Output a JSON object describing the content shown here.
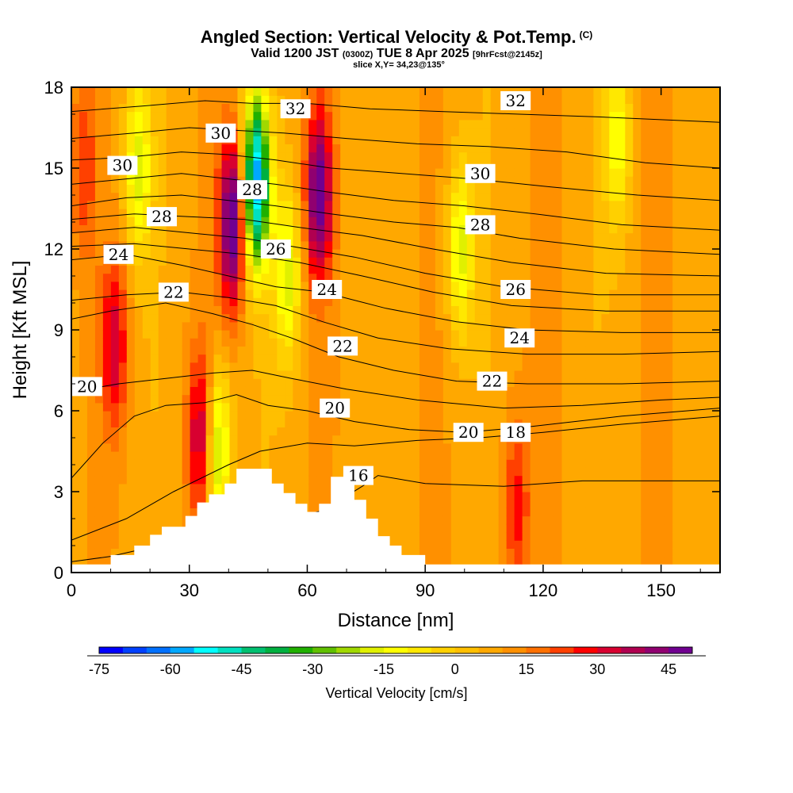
{
  "header": {
    "title": "Angled Section: Vertical Velocity & Pot.Temp.",
    "title_mark": "(C)",
    "subtitle_main": "Valid 1200 JST",
    "subtitle_utc": "(0300Z)",
    "subtitle_date": "TUE 8 Apr 2025",
    "subtitle_fcst": "[9hrFcst@2145z]",
    "slice": "slice X,Y= 34,23@135°"
  },
  "chart_data": {
    "type": "heatmap",
    "xlabel": "Distance [nm]",
    "ylabel": "Height [Kft MSL]",
    "xlim": [
      0,
      165
    ],
    "ylim": [
      0,
      18
    ],
    "x_ticks": [
      "0",
      "30",
      "60",
      "90",
      "120",
      "150"
    ],
    "y_ticks": [
      "0",
      "3",
      "6",
      "9",
      "12",
      "15",
      "18"
    ],
    "fill_variable": "Vertical Velocity [cm/s]",
    "colorbar": {
      "label": "Vertical Velocity [cm/s]",
      "min": -75,
      "max": 50,
      "step": 5,
      "tick_labels": [
        "-75",
        "-60",
        "-45",
        "-30",
        "-15",
        "0",
        "15",
        "30",
        "45"
      ],
      "colors": [
        "#0000ff",
        "#0040ff",
        "#0070ff",
        "#00a8ff",
        "#00ffff",
        "#00e0c0",
        "#00c070",
        "#00b040",
        "#20b000",
        "#60c000",
        "#a0d800",
        "#e0f000",
        "#ffff00",
        "#ffe800",
        "#ffd000",
        "#ffbf00",
        "#ffa800",
        "#ff9000",
        "#ff7000",
        "#ff4000",
        "#ff0000",
        "#d80030",
        "#b00050",
        "#900070",
        "#700090"
      ]
    },
    "features": [
      {
        "x": 47,
        "y": 14.5,
        "w": -65
      },
      {
        "x": 41,
        "y": 13,
        "w": 45
      },
      {
        "x": 63,
        "y": 14,
        "w": 40
      },
      {
        "x": 33,
        "y": 5,
        "w": 30
      },
      {
        "x": 11,
        "y": 8.5,
        "w": 25
      },
      {
        "x": 17,
        "y": 15,
        "w": -25
      },
      {
        "x": 99,
        "y": 12,
        "w": -25
      },
      {
        "x": 37,
        "y": 4.5,
        "w": -35
      },
      {
        "x": 55,
        "y": 11,
        "w": -25
      },
      {
        "x": 113,
        "y": 2.5,
        "w": 20
      },
      {
        "x": 139,
        "y": 16,
        "w": -20
      },
      {
        "x": 3,
        "y": 15,
        "w": 15
      }
    ],
    "terrain": [
      [
        0,
        0.3
      ],
      [
        10,
        0.3
      ],
      [
        10,
        0.65
      ],
      [
        16,
        0.65
      ],
      [
        16,
        1
      ],
      [
        20,
        1
      ],
      [
        20,
        1.4
      ],
      [
        23,
        1.4
      ],
      [
        23,
        1.7
      ],
      [
        29,
        1.7
      ],
      [
        29,
        2.1
      ],
      [
        32,
        2.1
      ],
      [
        32,
        2.6
      ],
      [
        35,
        2.6
      ],
      [
        35,
        2.9
      ],
      [
        39,
        2.9
      ],
      [
        39,
        3.3
      ],
      [
        42,
        3.3
      ],
      [
        42,
        3.85
      ],
      [
        51,
        3.85
      ],
      [
        51,
        3.3
      ],
      [
        54,
        3.3
      ],
      [
        54,
        2.95
      ],
      [
        57,
        2.95
      ],
      [
        57,
        2.55
      ],
      [
        60,
        2.55
      ],
      [
        60,
        2.25
      ],
      [
        63,
        2.25
      ],
      [
        63,
        2.55
      ],
      [
        66,
        2.55
      ],
      [
        66,
        3.55
      ],
      [
        72,
        3.55
      ],
      [
        72,
        2.7
      ],
      [
        75,
        2.7
      ],
      [
        75,
        2
      ],
      [
        78,
        2
      ],
      [
        78,
        1.35
      ],
      [
        81,
        1.35
      ],
      [
        81,
        1
      ],
      [
        84,
        1
      ],
      [
        84,
        0.65
      ],
      [
        90,
        0.65
      ],
      [
        90,
        0.3
      ],
      [
        165,
        0.3
      ]
    ],
    "contours": [
      {
        "level": 16,
        "label": "16",
        "lx": 73,
        "ly": 3.6,
        "pts": [
          [
            0,
            0.4
          ],
          [
            10,
            0.6
          ],
          [
            22,
            1
          ],
          [
            36,
            1.5
          ],
          [
            44,
            1.8
          ],
          [
            52,
            1.9
          ],
          [
            64,
            2.3
          ],
          [
            74,
            3.2
          ],
          [
            78,
            3.6
          ],
          [
            90,
            3.3
          ],
          [
            110,
            3.2
          ],
          [
            130,
            3.4
          ],
          [
            165,
            3.4
          ]
        ]
      },
      {
        "level": 18,
        "label": "18",
        "lx": 113,
        "ly": 5.2,
        "pts": [
          [
            0,
            1.2
          ],
          [
            14,
            2
          ],
          [
            26,
            3
          ],
          [
            40,
            4
          ],
          [
            48,
            4.5
          ],
          [
            60,
            4.8
          ],
          [
            72,
            4.7
          ],
          [
            88,
            4.9
          ],
          [
            104,
            5
          ],
          [
            120,
            5.2
          ],
          [
            140,
            5.5
          ],
          [
            165,
            5.8
          ]
        ]
      },
      {
        "level": 20,
        "label": "20",
        "lx": 67,
        "ly": 6.1,
        "pts": [
          [
            0,
            3.5
          ],
          [
            8,
            4.8
          ],
          [
            16,
            5.8
          ],
          [
            24,
            6.2
          ],
          [
            34,
            6.3
          ],
          [
            42,
            6.6
          ],
          [
            50,
            6.2
          ],
          [
            60,
            6
          ],
          [
            72,
            5.6
          ],
          [
            86,
            5.3
          ],
          [
            100,
            5.2
          ],
          [
            116,
            5.4
          ],
          [
            140,
            5.8
          ],
          [
            165,
            6.1
          ]
        ]
      },
      {
        "level": 21,
        "label": "",
        "lx": 0,
        "ly": 0,
        "pts": [
          [
            0,
            6.7
          ],
          [
            12,
            7
          ],
          [
            24,
            7.2
          ],
          [
            36,
            7.4
          ],
          [
            46,
            7.5
          ],
          [
            56,
            7.2
          ],
          [
            70,
            6.8
          ],
          [
            88,
            6.4
          ],
          [
            110,
            6.1
          ],
          [
            130,
            6.2
          ],
          [
            150,
            6.4
          ],
          [
            165,
            6.5
          ]
        ]
      },
      {
        "level": 22,
        "label": "22",
        "lx": 107,
        "ly": 7.1,
        "pts": [
          [
            0,
            9.4
          ],
          [
            10,
            9.7
          ],
          [
            24,
            10
          ],
          [
            36,
            9.6
          ],
          [
            46,
            9.2
          ],
          [
            56,
            8.7
          ],
          [
            68,
            8
          ],
          [
            82,
            7.5
          ],
          [
            98,
            7.1
          ],
          [
            116,
            7
          ],
          [
            140,
            7
          ],
          [
            165,
            7.1
          ]
        ]
      },
      {
        "level": 23,
        "label": "",
        "lx": 0,
        "ly": 0,
        "pts": [
          [
            0,
            10.1
          ],
          [
            14,
            10.3
          ],
          [
            28,
            10.4
          ],
          [
            40,
            10.2
          ],
          [
            52,
            9.9
          ],
          [
            64,
            9.3
          ],
          [
            78,
            8.7
          ],
          [
            96,
            8.3
          ],
          [
            116,
            8.1
          ],
          [
            140,
            8.1
          ],
          [
            165,
            8.2
          ]
        ]
      },
      {
        "level": 24,
        "label": "24",
        "lx": 12,
        "ly": 11.8,
        "pts": [
          [
            0,
            11.6
          ],
          [
            14,
            11.8
          ],
          [
            28,
            11.4
          ],
          [
            40,
            11
          ],
          [
            52,
            10.6
          ],
          [
            64,
            10.4
          ],
          [
            80,
            9.8
          ],
          [
            98,
            9.3
          ],
          [
            116,
            9
          ],
          [
            140,
            8.9
          ],
          [
            165,
            8.9
          ]
        ]
      },
      {
        "level": 25,
        "label": "",
        "lx": 0,
        "ly": 0,
        "pts": [
          [
            0,
            12.1
          ],
          [
            16,
            12.2
          ],
          [
            30,
            12
          ],
          [
            44,
            11.8
          ],
          [
            58,
            11.5
          ],
          [
            74,
            11
          ],
          [
            92,
            10.4
          ],
          [
            112,
            9.9
          ],
          [
            136,
            9.7
          ],
          [
            165,
            9.7
          ]
        ]
      },
      {
        "level": 26,
        "label": "26",
        "lx": 52,
        "ly": 12,
        "pts": [
          [
            0,
            12.6
          ],
          [
            16,
            12.8
          ],
          [
            30,
            12.6
          ],
          [
            44,
            12.4
          ],
          [
            56,
            12.1
          ],
          [
            72,
            11.7
          ],
          [
            90,
            11.1
          ],
          [
            110,
            10.6
          ],
          [
            134,
            10.3
          ],
          [
            165,
            10.3
          ]
        ]
      },
      {
        "level": 27,
        "label": "",
        "lx": 0,
        "ly": 0,
        "pts": [
          [
            0,
            13.1
          ],
          [
            16,
            13.3
          ],
          [
            30,
            13.2
          ],
          [
            44,
            13.1
          ],
          [
            58,
            12.8
          ],
          [
            74,
            12.5
          ],
          [
            92,
            12
          ],
          [
            112,
            11.5
          ],
          [
            136,
            11.1
          ],
          [
            165,
            11
          ]
        ]
      },
      {
        "level": 28,
        "label": "28",
        "lx": 23,
        "ly": 13.2,
        "pts": [
          [
            0,
            13.6
          ],
          [
            14,
            13.9
          ],
          [
            28,
            14
          ],
          [
            40,
            13.8
          ],
          [
            52,
            13.6
          ],
          [
            66,
            13.3
          ],
          [
            82,
            13
          ],
          [
            98,
            12.8
          ],
          [
            114,
            12.4
          ],
          [
            138,
            12
          ],
          [
            165,
            11.8
          ]
        ]
      },
      {
        "level": 29,
        "label": "",
        "lx": 0,
        "ly": 0,
        "pts": [
          [
            0,
            14.4
          ],
          [
            14,
            14.6
          ],
          [
            28,
            14.8
          ],
          [
            40,
            14.6
          ],
          [
            52,
            14.4
          ],
          [
            66,
            14.1
          ],
          [
            82,
            13.8
          ],
          [
            100,
            13.6
          ],
          [
            118,
            13.3
          ],
          [
            140,
            12.9
          ],
          [
            165,
            12.7
          ]
        ]
      },
      {
        "level": 30,
        "label": "30",
        "lx": 13,
        "ly": 15.1,
        "pts": [
          [
            0,
            15.3
          ],
          [
            14,
            15.4
          ],
          [
            28,
            15.6
          ],
          [
            40,
            15.5
          ],
          [
            52,
            15.3
          ],
          [
            66,
            15
          ],
          [
            84,
            14.8
          ],
          [
            102,
            14.6
          ],
          [
            122,
            14.3
          ],
          [
            144,
            14
          ],
          [
            165,
            13.8
          ]
        ]
      },
      {
        "level": 31,
        "label": "",
        "lx": 0,
        "ly": 0,
        "pts": [
          [
            0,
            16.1
          ],
          [
            16,
            16.3
          ],
          [
            30,
            16.5
          ],
          [
            42,
            16.4
          ],
          [
            54,
            16.3
          ],
          [
            70,
            16.1
          ],
          [
            88,
            15.9
          ],
          [
            106,
            15.8
          ],
          [
            126,
            15.6
          ],
          [
            146,
            15.2
          ],
          [
            165,
            15
          ]
        ]
      },
      {
        "level": 32,
        "label": "32",
        "lx": 57,
        "ly": 17.2,
        "pts": [
          [
            0,
            17.1
          ],
          [
            18,
            17.3
          ],
          [
            34,
            17.5
          ],
          [
            46,
            17.4
          ],
          [
            60,
            17.4
          ],
          [
            76,
            17.2
          ],
          [
            94,
            17.1
          ],
          [
            114,
            17
          ],
          [
            134,
            16.9
          ],
          [
            165,
            16.7
          ]
        ]
      }
    ],
    "extra_labels": [
      {
        "text": "30",
        "x": 38,
        "y": 16.3
      },
      {
        "text": "28",
        "x": 46,
        "y": 14.2
      },
      {
        "text": "24",
        "x": 65,
        "y": 10.5
      },
      {
        "text": "22",
        "x": 69,
        "y": 8.4
      },
      {
        "text": "22",
        "x": 26,
        "y": 10.4
      },
      {
        "text": "28",
        "x": 23,
        "y": 13.2
      },
      {
        "text": "30",
        "x": 104,
        "y": 14.8
      },
      {
        "text": "28",
        "x": 104,
        "y": 12.9
      },
      {
        "text": "26",
        "x": 113,
        "y": 10.5
      },
      {
        "text": "24",
        "x": 114,
        "y": 8.7
      },
      {
        "text": "20",
        "x": 101,
        "y": 5.2
      },
      {
        "text": "32",
        "x": 113,
        "y": 17.5
      },
      {
        "text": "20",
        "x": 4,
        "y": 6.9
      }
    ]
  }
}
